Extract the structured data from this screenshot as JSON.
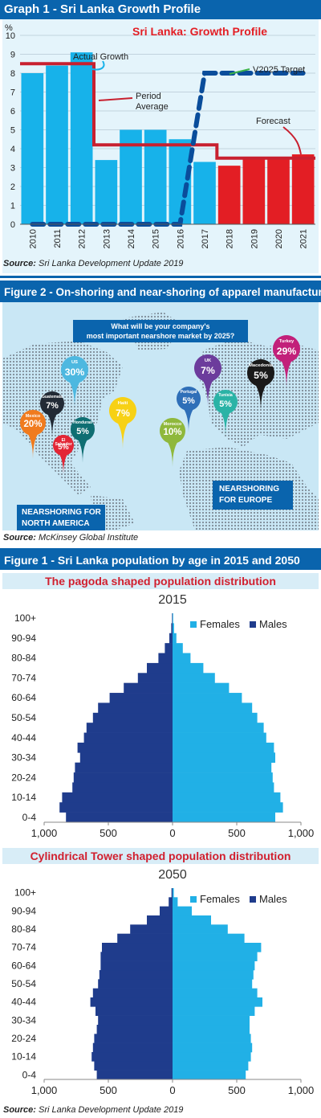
{
  "graph1": {
    "header": "Graph 1 - Sri Lanka Growth Profile",
    "source_label": "Source:",
    "source_text": "Sri Lanka Development Update 2019"
  },
  "figure2": {
    "header": "Figure 2 - On-shoring and near-shoring of apparel manufacturing",
    "question_line1": "What will be your company's",
    "question_line2": "most important nearshore market by 2025?",
    "na_label_line1": "NEARSHORING FOR",
    "na_label_line2": "NORTH AMERICA",
    "eu_label_line1": "NEARSHORING",
    "eu_label_line2": "FOR EUROPE",
    "source_label": "Source:",
    "source_text": "McKinsey Global Institute",
    "pins": [
      {
        "country": "US",
        "value": "30%",
        "color": "#4db8e0"
      },
      {
        "country": "Guatemala",
        "value": "7%",
        "color": "#222a35"
      },
      {
        "country": "Mexico",
        "value": "20%",
        "color": "#f07b1e"
      },
      {
        "country": "El Salvador",
        "value": "5%",
        "color": "#e32636"
      },
      {
        "country": "Honduras",
        "value": "5%",
        "color": "#0f6e72"
      },
      {
        "country": "Haiti",
        "value": "7%",
        "color": "#f7d115"
      },
      {
        "country": "UK",
        "value": "7%",
        "color": "#6c3c9c"
      },
      {
        "country": "Portugal",
        "value": "5%",
        "color": "#2f6fb8"
      },
      {
        "country": "Morocco",
        "value": "10%",
        "color": "#8fb83c"
      },
      {
        "country": "Tunisia",
        "value": "5%",
        "color": "#2ab3a6"
      },
      {
        "country": "Macedonia",
        "value": "5%",
        "color": "#1a1a1a"
      },
      {
        "country": "Turkey",
        "value": "29%",
        "color": "#c2207a"
      }
    ]
  },
  "figure1": {
    "header": "Figure 1 - Sri Lanka population by age in 2015 and 2050",
    "title_2015": "The pagoda shaped population distribution",
    "title_2050": "Cylindrical Tower shaped population distribution",
    "source_label": "Source:",
    "source_text": "Sri Lanka Development Update 2019"
  },
  "chart_data": [
    {
      "type": "bar",
      "title": "Sri Lanka: Growth Profile",
      "ylabel": "%",
      "ylim": [
        0,
        10
      ],
      "yticks": [
        "0",
        "1",
        "2",
        "3",
        "4",
        "5",
        "6",
        "7",
        "8",
        "9",
        "10"
      ],
      "categories": [
        "2010",
        "2011",
        "2012",
        "2013",
        "2014",
        "2015",
        "2016",
        "2017",
        "2018",
        "2019",
        "2020",
        "2021"
      ],
      "series": [
        {
          "name": "Actual Growth",
          "values": [
            8.0,
            8.4,
            9.1,
            3.4,
            5.0,
            5.0,
            4.5,
            3.3,
            null,
            null,
            null,
            null
          ],
          "color": "#17b2ea"
        },
        {
          "name": "Forecast",
          "values": [
            null,
            null,
            null,
            null,
            null,
            null,
            null,
            null,
            3.1,
            3.5,
            3.5,
            3.7
          ],
          "color": "#e31e24"
        },
        {
          "name": "Period Average",
          "type": "line",
          "values": [
            8.5,
            8.5,
            8.5,
            4.2,
            4.2,
            4.2,
            4.2,
            4.2,
            3.5,
            3.5,
            3.5,
            3.5
          ],
          "color": "#c8202f"
        },
        {
          "name": "V2025 Target",
          "type": "line",
          "values": [
            0,
            0,
            0,
            0,
            0,
            0,
            0,
            8,
            8,
            8,
            8,
            8
          ],
          "color": "#0a4d9b"
        }
      ],
      "annotations": [
        "Actual Growth",
        "Period",
        "Average",
        "V2025 Target",
        "Forecast"
      ]
    },
    {
      "type": "bar",
      "title": "2015",
      "orientation": "horizontal-pyramid",
      "categories": [
        "0-4",
        "5-9",
        "10-14",
        "15-19",
        "20-24",
        "25-29",
        "30-34",
        "35-39",
        "40-44",
        "45-49",
        "50-54",
        "55-59",
        "60-64",
        "65-69",
        "70-74",
        "75-79",
        "80-84",
        "85-89",
        "90-94",
        "95-99",
        "100+"
      ],
      "ytick_labels": [
        "100+",
        "90-94",
        "80-84",
        "70-74",
        "60-64",
        "50-54",
        "40-44",
        "30-34",
        "20-24",
        "10-14",
        "0-4"
      ],
      "xticks": [
        "1,000",
        "500",
        "0",
        "500",
        "1,000"
      ],
      "xlim": [
        -1000,
        1000
      ],
      "series": [
        {
          "name": "Females",
          "values": [
            800,
            860,
            840,
            790,
            780,
            770,
            800,
            790,
            730,
            710,
            660,
            620,
            540,
            440,
            330,
            240,
            140,
            80,
            30,
            12,
            5
          ],
          "color": "#21b0e6"
        },
        {
          "name": "Males",
          "values": [
            830,
            880,
            860,
            780,
            770,
            760,
            720,
            740,
            690,
            670,
            620,
            580,
            490,
            380,
            270,
            200,
            110,
            60,
            25,
            10,
            4
          ],
          "color": "#1f3c8c"
        }
      ]
    },
    {
      "type": "bar",
      "title": "2050",
      "orientation": "horizontal-pyramid",
      "categories": [
        "0-4",
        "5-9",
        "10-14",
        "15-19",
        "20-24",
        "25-29",
        "30-34",
        "35-39",
        "40-44",
        "45-49",
        "50-54",
        "55-59",
        "60-64",
        "65-69",
        "70-74",
        "75-79",
        "80-84",
        "85-89",
        "90-94",
        "95-99",
        "100+"
      ],
      "ytick_labels": [
        "100+",
        "90-94",
        "80-84",
        "70-74",
        "60-64",
        "50-54",
        "40-44",
        "30-34",
        "20-24",
        "10-14",
        "0-4"
      ],
      "xticks": [
        "1,000",
        "500",
        "0",
        "500",
        "1,000"
      ],
      "xlim": [
        -1000,
        1000
      ],
      "series": [
        {
          "name": "Females",
          "values": [
            570,
            590,
            610,
            620,
            610,
            600,
            600,
            640,
            700,
            660,
            620,
            630,
            640,
            660,
            690,
            560,
            430,
            300,
            150,
            40,
            10
          ],
          "color": "#21b0e6"
        },
        {
          "name": "Males",
          "values": [
            590,
            610,
            630,
            620,
            610,
            590,
            580,
            600,
            640,
            620,
            580,
            570,
            560,
            560,
            550,
            430,
            330,
            200,
            100,
            30,
            8
          ],
          "color": "#1f3c8c"
        }
      ]
    }
  ]
}
